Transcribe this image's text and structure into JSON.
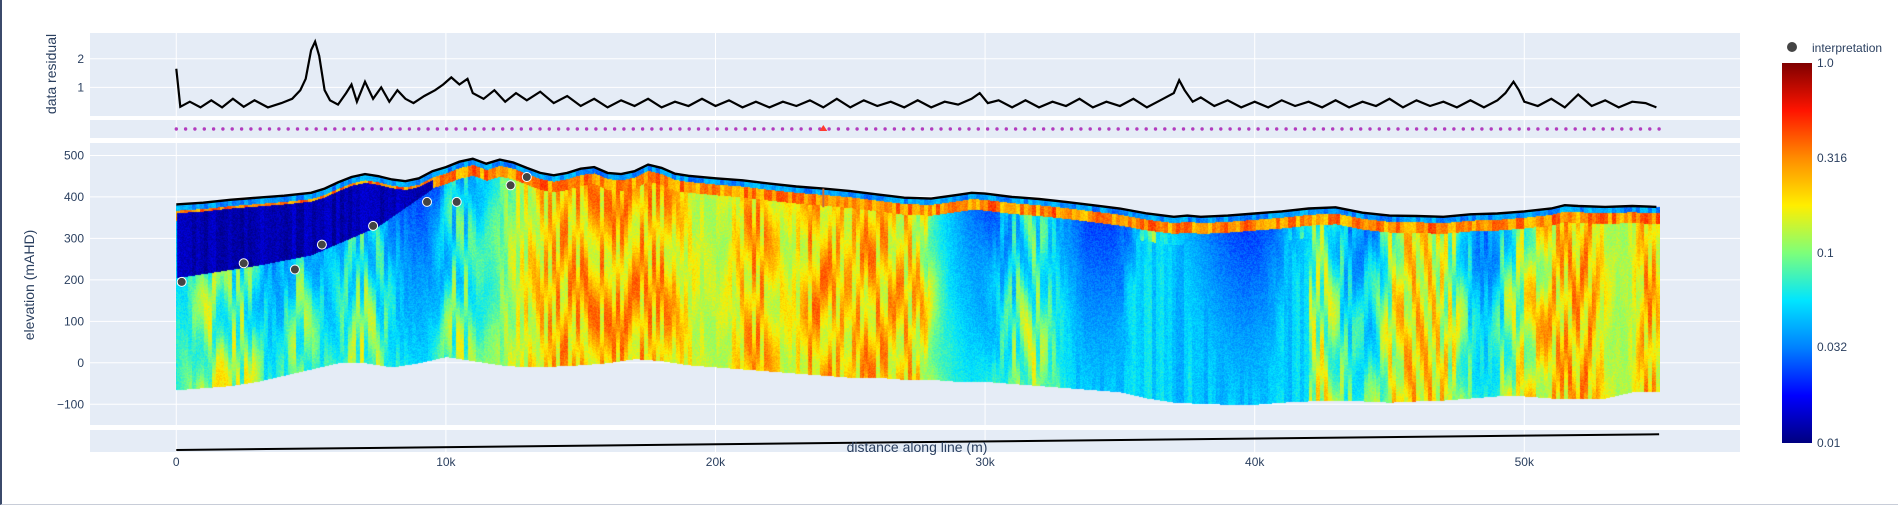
{
  "chart_data": {
    "type": "heatmap",
    "title": "",
    "xlabel": "distance along line  (m)",
    "x_ticks": [
      {
        "value": 0,
        "label": "0"
      },
      {
        "value": 10000,
        "label": "10k"
      },
      {
        "value": 20000,
        "label": "20k"
      },
      {
        "value": 30000,
        "label": "30k"
      },
      {
        "value": 40000,
        "label": "40k"
      },
      {
        "value": 50000,
        "label": "50k"
      }
    ],
    "xlim": [
      -3200,
      58000
    ],
    "line_extent": [
      0,
      55000
    ],
    "residual_panel": {
      "ylabel": "data residual",
      "ylim": [
        0,
        2.9
      ],
      "y_ticks": [
        {
          "value": 1,
          "label": "1"
        },
        {
          "value": 2,
          "label": "2"
        }
      ],
      "series": [
        {
          "name": "residual",
          "points": [
            [
              0,
              1.65
            ],
            [
              150,
              0.32
            ],
            [
              500,
              0.5
            ],
            [
              900,
              0.3
            ],
            [
              1300,
              0.55
            ],
            [
              1700,
              0.3
            ],
            [
              2100,
              0.6
            ],
            [
              2500,
              0.32
            ],
            [
              2900,
              0.55
            ],
            [
              3400,
              0.3
            ],
            [
              3900,
              0.45
            ],
            [
              4300,
              0.6
            ],
            [
              4600,
              0.9
            ],
            [
              4800,
              1.3
            ],
            [
              5000,
              2.3
            ],
            [
              5150,
              2.6
            ],
            [
              5300,
              2.1
            ],
            [
              5500,
              0.9
            ],
            [
              5700,
              0.55
            ],
            [
              6000,
              0.4
            ],
            [
              6300,
              0.8
            ],
            [
              6500,
              1.1
            ],
            [
              6700,
              0.5
            ],
            [
              7000,
              1.2
            ],
            [
              7300,
              0.6
            ],
            [
              7600,
              1.0
            ],
            [
              7900,
              0.5
            ],
            [
              8200,
              0.9
            ],
            [
              8500,
              0.6
            ],
            [
              8800,
              0.45
            ],
            [
              9200,
              0.7
            ],
            [
              9600,
              0.9
            ],
            [
              9900,
              1.1
            ],
            [
              10200,
              1.35
            ],
            [
              10500,
              1.1
            ],
            [
              10800,
              1.3
            ],
            [
              11000,
              0.8
            ],
            [
              11400,
              0.6
            ],
            [
              11800,
              0.9
            ],
            [
              12200,
              0.5
            ],
            [
              12600,
              0.8
            ],
            [
              13000,
              0.55
            ],
            [
              13500,
              0.85
            ],
            [
              14000,
              0.45
            ],
            [
              14500,
              0.7
            ],
            [
              15000,
              0.35
            ],
            [
              15500,
              0.6
            ],
            [
              16000,
              0.3
            ],
            [
              16500,
              0.55
            ],
            [
              17000,
              0.35
            ],
            [
              17500,
              0.6
            ],
            [
              18000,
              0.3
            ],
            [
              18500,
              0.5
            ],
            [
              19000,
              0.35
            ],
            [
              19500,
              0.6
            ],
            [
              20000,
              0.35
            ],
            [
              20500,
              0.55
            ],
            [
              21000,
              0.3
            ],
            [
              21500,
              0.5
            ],
            [
              22000,
              0.3
            ],
            [
              22500,
              0.5
            ],
            [
              23000,
              0.35
            ],
            [
              23500,
              0.55
            ],
            [
              24000,
              0.3
            ],
            [
              24500,
              0.6
            ],
            [
              25000,
              0.3
            ],
            [
              25500,
              0.55
            ],
            [
              26000,
              0.35
            ],
            [
              26500,
              0.5
            ],
            [
              27000,
              0.3
            ],
            [
              27500,
              0.55
            ],
            [
              28000,
              0.3
            ],
            [
              28500,
              0.5
            ],
            [
              29000,
              0.4
            ],
            [
              29500,
              0.6
            ],
            [
              29800,
              0.8
            ],
            [
              30100,
              0.45
            ],
            [
              30500,
              0.55
            ],
            [
              31000,
              0.3
            ],
            [
              31500,
              0.55
            ],
            [
              32000,
              0.3
            ],
            [
              32500,
              0.5
            ],
            [
              33000,
              0.35
            ],
            [
              33500,
              0.6
            ],
            [
              34000,
              0.3
            ],
            [
              34500,
              0.5
            ],
            [
              35000,
              0.35
            ],
            [
              35500,
              0.6
            ],
            [
              36000,
              0.3
            ],
            [
              36500,
              0.55
            ],
            [
              37000,
              0.8
            ],
            [
              37200,
              1.25
            ],
            [
              37400,
              0.9
            ],
            [
              37700,
              0.5
            ],
            [
              38000,
              0.65
            ],
            [
              38500,
              0.35
            ],
            [
              39000,
              0.55
            ],
            [
              39500,
              0.3
            ],
            [
              40000,
              0.5
            ],
            [
              40500,
              0.3
            ],
            [
              41000,
              0.55
            ],
            [
              41500,
              0.35
            ],
            [
              42000,
              0.5
            ],
            [
              42500,
              0.3
            ],
            [
              43000,
              0.55
            ],
            [
              43500,
              0.3
            ],
            [
              44000,
              0.5
            ],
            [
              44500,
              0.35
            ],
            [
              45000,
              0.6
            ],
            [
              45500,
              0.3
            ],
            [
              46000,
              0.55
            ],
            [
              46500,
              0.35
            ],
            [
              47000,
              0.5
            ],
            [
              47500,
              0.3
            ],
            [
              48000,
              0.55
            ],
            [
              48500,
              0.3
            ],
            [
              49000,
              0.55
            ],
            [
              49300,
              0.8
            ],
            [
              49600,
              1.2
            ],
            [
              49800,
              0.9
            ],
            [
              50000,
              0.5
            ],
            [
              50500,
              0.35
            ],
            [
              51000,
              0.6
            ],
            [
              51500,
              0.3
            ],
            [
              52000,
              0.75
            ],
            [
              52500,
              0.35
            ],
            [
              53000,
              0.55
            ],
            [
              53500,
              0.3
            ],
            [
              54000,
              0.5
            ],
            [
              54500,
              0.45
            ],
            [
              54900,
              0.3
            ]
          ]
        }
      ]
    },
    "station_panel": {
      "station_count": 160,
      "station_color": "#b23dbe",
      "marker": {
        "x": 24000,
        "color": "#ff3b30"
      }
    },
    "section_panel": {
      "ylabel": "elevation (mAHD)",
      "ylim": [
        -150,
        530
      ],
      "y_ticks": [
        {
          "value": -100,
          "label": "−100"
        },
        {
          "value": 0,
          "label": "0"
        },
        {
          "value": 100,
          "label": "100"
        },
        {
          "value": 200,
          "label": "200"
        },
        {
          "value": 300,
          "label": "300"
        },
        {
          "value": 400,
          "label": "400"
        },
        {
          "value": 500,
          "label": "500"
        }
      ],
      "topography": [
        [
          0,
          382
        ],
        [
          1000,
          386
        ],
        [
          2000,
          393
        ],
        [
          3000,
          398
        ],
        [
          4000,
          403
        ],
        [
          5000,
          410
        ],
        [
          5500,
          420
        ],
        [
          6000,
          435
        ],
        [
          6500,
          448
        ],
        [
          7000,
          455
        ],
        [
          7500,
          450
        ],
        [
          8000,
          442
        ],
        [
          8500,
          438
        ],
        [
          9000,
          445
        ],
        [
          9500,
          462
        ],
        [
          10000,
          472
        ],
        [
          10500,
          485
        ],
        [
          11000,
          492
        ],
        [
          11500,
          480
        ],
        [
          12000,
          490
        ],
        [
          12500,
          483
        ],
        [
          13000,
          470
        ],
        [
          13500,
          458
        ],
        [
          14000,
          452
        ],
        [
          14500,
          458
        ],
        [
          15000,
          468
        ],
        [
          15500,
          472
        ],
        [
          16000,
          458
        ],
        [
          16500,
          455
        ],
        [
          17000,
          462
        ],
        [
          17500,
          478
        ],
        [
          18000,
          470
        ],
        [
          18500,
          456
        ],
        [
          19000,
          451
        ],
        [
          20000,
          445
        ],
        [
          21000,
          440
        ],
        [
          22000,
          432
        ],
        [
          23000,
          425
        ],
        [
          24000,
          420
        ],
        [
          25000,
          414
        ],
        [
          26000,
          406
        ],
        [
          27000,
          398
        ],
        [
          28000,
          396
        ],
        [
          29000,
          405
        ],
        [
          29500,
          410
        ],
        [
          30000,
          408
        ],
        [
          31000,
          400
        ],
        [
          32000,
          395
        ],
        [
          33000,
          388
        ],
        [
          34000,
          380
        ],
        [
          35000,
          372
        ],
        [
          36000,
          360
        ],
        [
          37000,
          352
        ],
        [
          37500,
          355
        ],
        [
          38000,
          352
        ],
        [
          39000,
          355
        ],
        [
          40000,
          360
        ],
        [
          41000,
          365
        ],
        [
          42000,
          372
        ],
        [
          43000,
          375
        ],
        [
          44000,
          362
        ],
        [
          45000,
          355
        ],
        [
          46000,
          354
        ],
        [
          47000,
          352
        ],
        [
          48000,
          358
        ],
        [
          49000,
          360
        ],
        [
          50000,
          365
        ],
        [
          51000,
          372
        ],
        [
          51500,
          380
        ],
        [
          52000,
          378
        ],
        [
          53000,
          376
        ],
        [
          54000,
          378
        ],
        [
          54900,
          376
        ]
      ],
      "bottom": [
        [
          0,
          -65
        ],
        [
          1000,
          -60
        ],
        [
          2000,
          -55
        ],
        [
          3000,
          -45
        ],
        [
          4000,
          -30
        ],
        [
          5000,
          -15
        ],
        [
          6000,
          0
        ],
        [
          7000,
          0
        ],
        [
          8000,
          -10
        ],
        [
          9000,
          0
        ],
        [
          10000,
          15
        ],
        [
          11000,
          5
        ],
        [
          12000,
          -5
        ],
        [
          13000,
          -10
        ],
        [
          14000,
          -8
        ],
        [
          15000,
          -5
        ],
        [
          16000,
          0
        ],
        [
          17000,
          10
        ],
        [
          18000,
          5
        ],
        [
          19000,
          -5
        ],
        [
          20000,
          -10
        ],
        [
          21000,
          -15
        ],
        [
          22000,
          -20
        ],
        [
          23000,
          -25
        ],
        [
          24000,
          -30
        ],
        [
          25000,
          -35
        ],
        [
          26000,
          -35
        ],
        [
          27000,
          -40
        ],
        [
          28000,
          -40
        ],
        [
          29000,
          -45
        ],
        [
          30000,
          -45
        ],
        [
          31000,
          -50
        ],
        [
          32000,
          -55
        ],
        [
          33000,
          -60
        ],
        [
          34000,
          -65
        ],
        [
          35000,
          -70
        ],
        [
          36000,
          -85
        ],
        [
          37000,
          -95
        ],
        [
          38000,
          -98
        ],
        [
          39000,
          -100
        ],
        [
          40000,
          -100
        ],
        [
          41000,
          -95
        ],
        [
          42000,
          -92
        ],
        [
          43000,
          -90
        ],
        [
          44000,
          -92
        ],
        [
          45000,
          -95
        ],
        [
          46000,
          -92
        ],
        [
          47000,
          -90
        ],
        [
          48000,
          -85
        ],
        [
          49000,
          -80
        ],
        [
          50000,
          -80
        ],
        [
          51000,
          -85
        ],
        [
          52000,
          -85
        ],
        [
          53000,
          -85
        ],
        [
          54000,
          -70
        ],
        [
          54900,
          -70
        ]
      ],
      "interpretation_points": [
        [
          200,
          195
        ],
        [
          2500,
          240
        ],
        [
          4400,
          225
        ],
        [
          5400,
          285
        ],
        [
          7300,
          330
        ],
        [
          9300,
          388
        ],
        [
          10400,
          388
        ],
        [
          12400,
          428
        ],
        [
          13000,
          448
        ]
      ],
      "depth_of_investigation": [
        [
          0,
          -150
        ],
        [
          55000,
          -115
        ]
      ]
    },
    "colorbar": {
      "scale": "log",
      "range": [
        0.01,
        1.0
      ],
      "ticks": [
        {
          "value": 1.0,
          "label": "1.0"
        },
        {
          "value": 0.316,
          "label": "0.316"
        },
        {
          "value": 0.1,
          "label": "0.1"
        },
        {
          "value": 0.032,
          "label": "0.032"
        },
        {
          "value": 0.01,
          "label": "0.01"
        }
      ],
      "colors": [
        "#00007f",
        "#0000ff",
        "#0080ff",
        "#00e5ff",
        "#7dff7a",
        "#ffee00",
        "#ff8c00",
        "#ff1400",
        "#7f0000"
      ]
    },
    "legend": {
      "entries": [
        {
          "name": "interpretation",
          "marker": "circle",
          "color": "#444444"
        }
      ]
    }
  }
}
